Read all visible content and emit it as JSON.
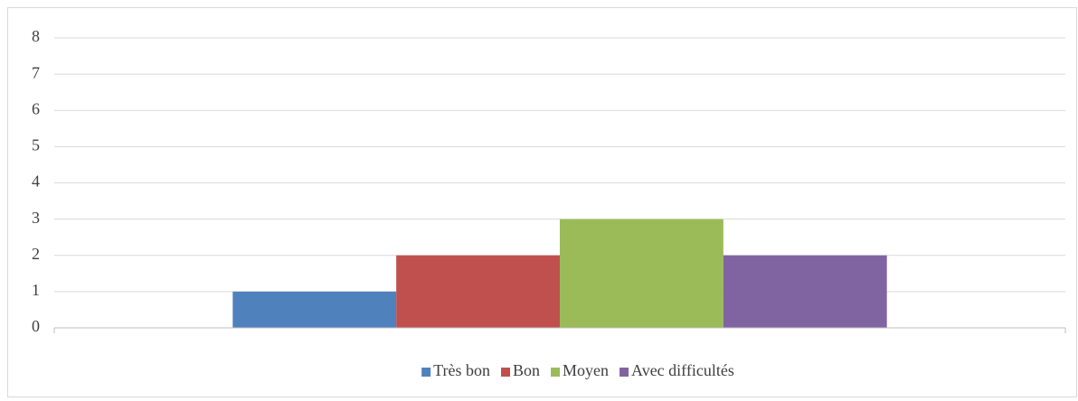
{
  "chart_data": {
    "type": "bar",
    "categories": [
      null
    ],
    "series": [
      {
        "name": "Très bon",
        "color": "#4f81bd",
        "values": [
          1
        ]
      },
      {
        "name": "Bon",
        "color": "#c0504d",
        "values": [
          2
        ]
      },
      {
        "name": "Moyen",
        "color": "#9bbb59",
        "values": [
          3
        ]
      },
      {
        "name": "Avec difficultés",
        "color": "#8064a2",
        "values": [
          2
        ]
      }
    ],
    "ylim": [
      0,
      8
    ],
    "yticks": [
      0,
      1,
      2,
      3,
      4,
      5,
      6,
      7,
      8
    ],
    "grid": true,
    "legend": "bottom"
  }
}
